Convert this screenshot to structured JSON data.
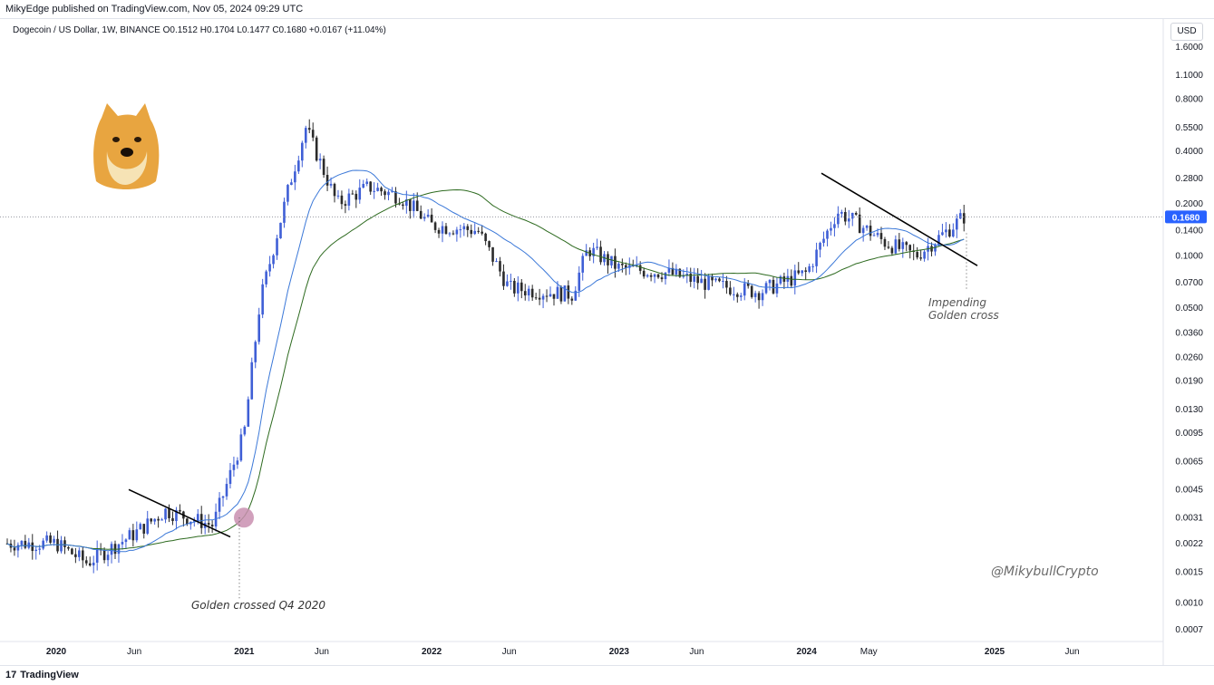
{
  "header": {
    "published": "MikyEdge published on TradingView.com, Nov 05, 2024 09:29 UTC"
  },
  "symbol": {
    "name": "Dogecoin / US Dollar, 1W, BINANCE",
    "open": "O0.1512",
    "high": "H0.1704",
    "low": "L0.1477",
    "close": "C0.1680",
    "change": "+0.0167 (+11.04%)"
  },
  "currency_button": "USD",
  "footer": {
    "brand": "TradingView"
  },
  "colors": {
    "bull": "#3f5fd6",
    "bear": "#2b2b2b",
    "ma_short": "#3b78d8",
    "ma_long": "#2d6a1f",
    "trendline": "#000000",
    "price_tag": "#2962ff",
    "cross_marker": "#c98fb0"
  },
  "chart_data": {
    "type": "candlestick",
    "scale": "log",
    "interval": "1W",
    "y_ticks": [
      "1.6000",
      "1.1000",
      "0.8000",
      "0.5500",
      "0.4000",
      "0.2800",
      "0.2000",
      "0.1400",
      "0.1000",
      "0.0700",
      "0.0500",
      "0.0360",
      "0.0260",
      "0.0190",
      "0.0130",
      "0.0095",
      "0.0065",
      "0.0045",
      "0.0031",
      "0.0022",
      "0.0015",
      "0.0010",
      "0.0007"
    ],
    "x_ticks": [
      "2020",
      "Jun",
      "2021",
      "Jun",
      "2022",
      "Jun",
      "2023",
      "Jun",
      "2024",
      "May",
      "2025",
      "Jun"
    ],
    "last_price": "0.1680",
    "series": [
      {
        "name": "price",
        "approx_weekly_close": [
          {
            "t": "2020-01",
            "v": 0.0022
          },
          {
            "t": "2020-03",
            "v": 0.0017
          },
          {
            "t": "2020-06",
            "v": 0.0025
          },
          {
            "t": "2020-08",
            "v": 0.0034
          },
          {
            "t": "2020-11",
            "v": 0.0028
          },
          {
            "t": "2021-01",
            "v": 0.0095
          },
          {
            "t": "2021-02",
            "v": 0.055
          },
          {
            "t": "2021-04",
            "v": 0.27
          },
          {
            "t": "2021-05",
            "v": 0.55
          },
          {
            "t": "2021-07",
            "v": 0.2
          },
          {
            "t": "2021-09",
            "v": 0.25
          },
          {
            "t": "2021-11",
            "v": 0.22
          },
          {
            "t": "2022-01",
            "v": 0.15
          },
          {
            "t": "2022-04",
            "v": 0.14
          },
          {
            "t": "2022-06",
            "v": 0.065
          },
          {
            "t": "2022-10",
            "v": 0.06
          },
          {
            "t": "2022-11",
            "v": 0.11
          },
          {
            "t": "2023-01",
            "v": 0.085
          },
          {
            "t": "2023-04",
            "v": 0.08
          },
          {
            "t": "2023-07",
            "v": 0.068
          },
          {
            "t": "2023-10",
            "v": 0.062
          },
          {
            "t": "2024-01",
            "v": 0.08
          },
          {
            "t": "2024-03",
            "v": 0.18
          },
          {
            "t": "2024-04",
            "v": 0.16
          },
          {
            "t": "2024-06",
            "v": 0.12
          },
          {
            "t": "2024-08",
            "v": 0.1
          },
          {
            "t": "2024-10",
            "v": 0.14
          },
          {
            "t": "2024-11",
            "v": 0.168
          }
        ]
      },
      {
        "name": "short MA"
      },
      {
        "name": "long MA"
      }
    ],
    "annotations": [
      {
        "text": "Golden crossed Q4 2020"
      },
      {
        "text": "Impending"
      },
      {
        "text": "Golden cross"
      },
      {
        "text": "@MikybullCrypto"
      }
    ]
  }
}
